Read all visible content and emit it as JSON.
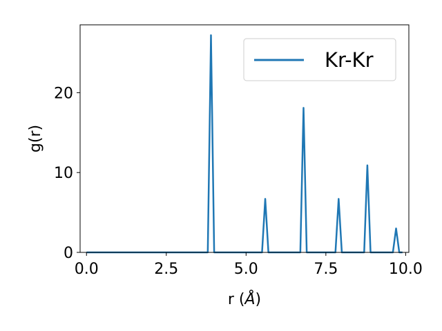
{
  "chart_data": {
    "type": "line",
    "title": "",
    "xlabel_main": "r (",
    "xlabel_unit": "Å",
    "xlabel_close": ")",
    "ylabel": "g(r)",
    "xlim": [
      -0.2,
      10.1
    ],
    "ylim": [
      0,
      28.5
    ],
    "xticks": [
      0.0,
      2.5,
      5.0,
      7.5,
      10.0
    ],
    "xtick_labels": [
      "0.0",
      "2.5",
      "5.0",
      "7.5",
      "10.0"
    ],
    "yticks": [
      0,
      10,
      20
    ],
    "ytick_labels": [
      "0",
      "10",
      "20"
    ],
    "grid": false,
    "legend_position": "upper right",
    "series": [
      {
        "name": "Kr-Kr",
        "color": "#1f77b4",
        "x": [
          0.0,
          3.8,
          3.9,
          4.0,
          5.5,
          5.6,
          5.7,
          6.7,
          6.8,
          6.9,
          7.8,
          7.9,
          8.0,
          8.7,
          8.8,
          8.9,
          9.6,
          9.7,
          9.8,
          9.9
        ],
        "y": [
          0,
          0,
          27.2,
          0,
          0,
          6.7,
          0,
          0,
          18.1,
          0,
          0,
          6.7,
          0,
          0,
          10.9,
          0,
          0,
          3.0,
          0,
          0
        ]
      }
    ]
  }
}
